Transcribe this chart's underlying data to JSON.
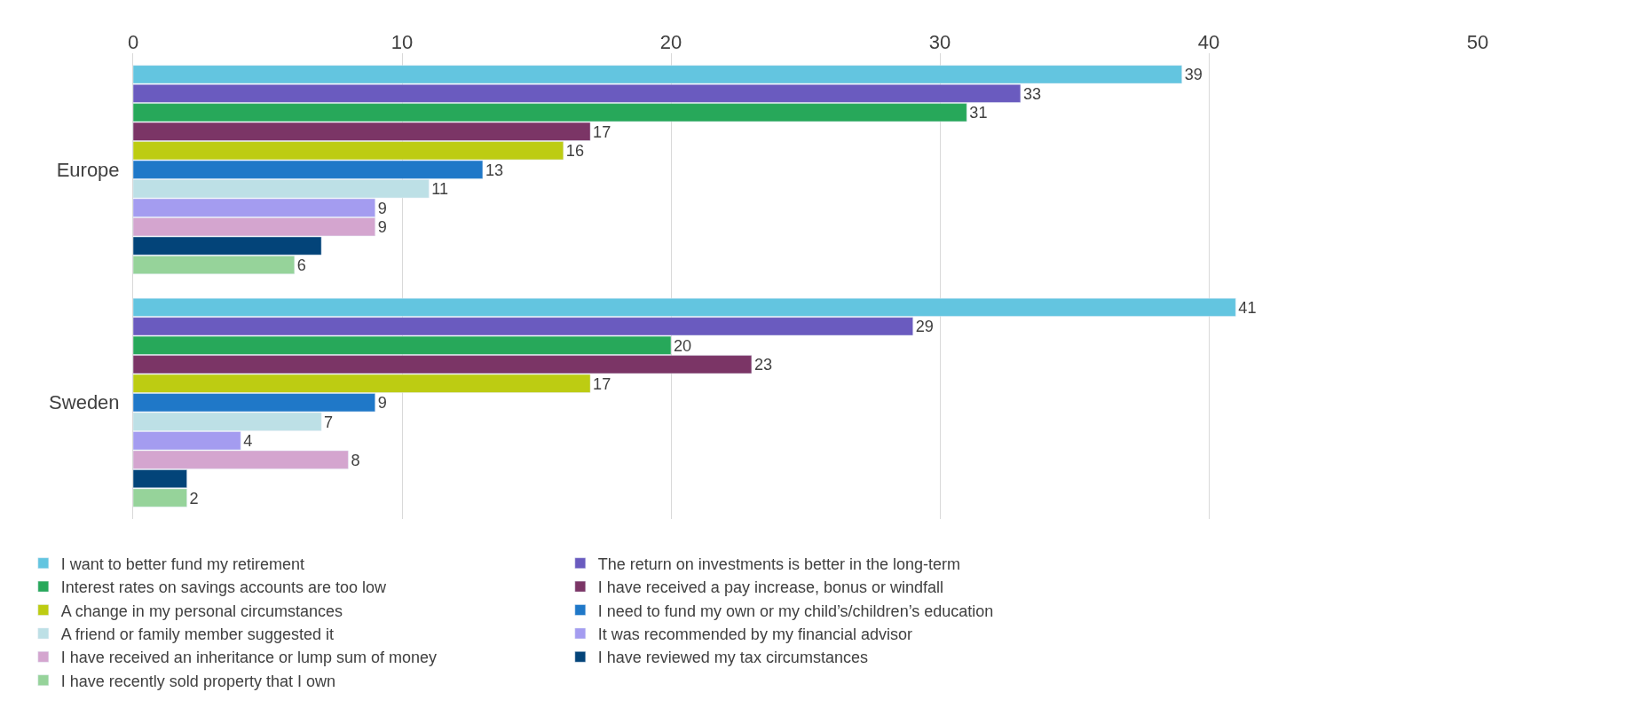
{
  "chart_data": {
    "type": "bar",
    "orientation": "horizontal",
    "categories": [
      "Europe",
      "Sweden"
    ],
    "series": [
      {
        "name": "I want to better fund my retirement",
        "color": "#63c5e0",
        "values": [
          39,
          41
        ],
        "value_labels": [
          "39",
          "41"
        ]
      },
      {
        "name": "The return on investments is better in the long-term",
        "color": "#6a5bbf",
        "values": [
          33,
          29
        ],
        "value_labels": [
          "33",
          "29"
        ]
      },
      {
        "name": "Interest rates on savings accounts are too low",
        "color": "#27a85a",
        "values": [
          31,
          20
        ],
        "value_labels": [
          "31",
          "20"
        ]
      },
      {
        "name": "I have received a pay increase, bonus or windfall",
        "color": "#7b3566",
        "values": [
          17,
          23
        ],
        "value_labels": [
          "17",
          "23"
        ]
      },
      {
        "name": "A change in my personal circumstances",
        "color": "#bdcc12",
        "values": [
          16,
          17
        ],
        "value_labels": [
          "16",
          "17"
        ]
      },
      {
        "name": "I need to fund my own or my child’s/children’s education",
        "color": "#1f78c8",
        "values": [
          13,
          9
        ],
        "value_labels": [
          "13",
          "9"
        ]
      },
      {
        "name": "A friend or family member suggested it",
        "color": "#bde0e6",
        "values": [
          11,
          7
        ],
        "value_labels": [
          "11",
          "7"
        ]
      },
      {
        "name": "It was recommended by my financial advisor",
        "color": "#a49cf0",
        "values": [
          9,
          4
        ],
        "value_labels": [
          "9",
          "4"
        ]
      },
      {
        "name": "I have received an inheritance or lump sum of money",
        "color": "#d4a5cf",
        "values": [
          9,
          8
        ],
        "value_labels": [
          "9",
          "8"
        ]
      },
      {
        "name": "I have reviewed my tax circumstances",
        "color": "#034479",
        "values": [
          7,
          2
        ],
        "value_labels": [
          null,
          null
        ]
      },
      {
        "name": "I have recently sold property that I own",
        "color": "#96d39a",
        "values": [
          6,
          2
        ],
        "value_labels": [
          "6",
          "2"
        ]
      }
    ],
    "xlim": [
      0,
      50
    ],
    "xticks": [
      0,
      10,
      20,
      30,
      40,
      50
    ],
    "grid": "x",
    "legend": "bottom"
  }
}
